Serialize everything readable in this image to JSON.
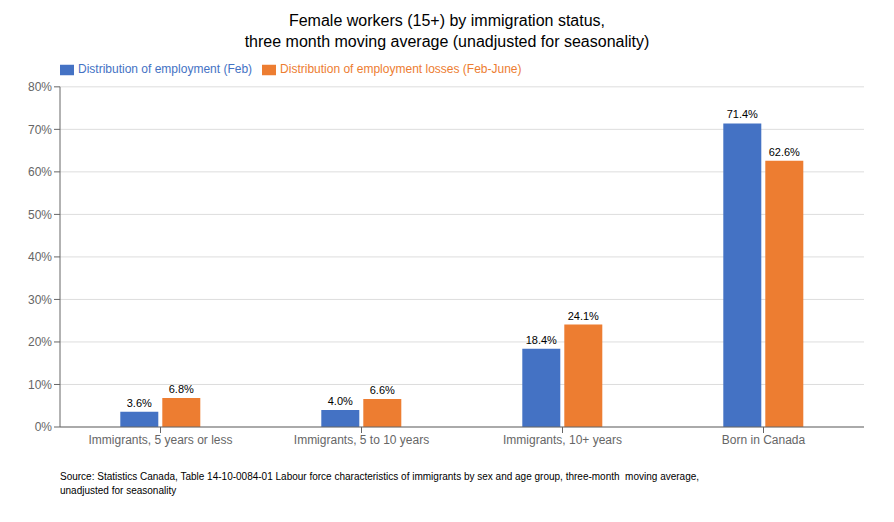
{
  "chart_data": {
    "type": "bar",
    "title": "Female workers (15+) by immigration status,\nthree month moving average (unadjusted for seasonality)",
    "categories": [
      "Immigrants, 5 years or less",
      "Immigrants, 5 to 10 years",
      "Immigrants, 10+ years",
      "Born in Canada"
    ],
    "series": [
      {
        "name": "Distribution of employment (Feb)",
        "color": "#4472C4",
        "values": [
          3.6,
          4.0,
          18.4,
          71.4
        ],
        "value_labels": [
          "3.6%",
          "4.0%",
          "18.4%",
          "71.4%"
        ]
      },
      {
        "name": "Distribution of employment losses (Feb-June)",
        "color": "#ED7D31",
        "values": [
          6.8,
          6.6,
          24.1,
          62.6
        ],
        "value_labels": [
          "6.8%",
          "6.6%",
          "24.1%",
          "62.6%"
        ]
      }
    ],
    "ylim": [
      0,
      80
    ],
    "yticks": [
      {
        "value": 0,
        "label": "0%"
      },
      {
        "value": 10,
        "label": "10%"
      },
      {
        "value": 20,
        "label": "20%"
      },
      {
        "value": 30,
        "label": "30%"
      },
      {
        "value": 40,
        "label": "40%"
      },
      {
        "value": 50,
        "label": "50%"
      },
      {
        "value": 60,
        "label": "60%"
      },
      {
        "value": 70,
        "label": "70%"
      },
      {
        "value": 80,
        "label": "80%"
      }
    ],
    "grid": true,
    "legend": "upper left",
    "data_labels": true,
    "annotations": [
      "Source: Statistics Canada, Table 14-10-0084-01 Labour force characteristics of immigrants by sex and age group, three-month  moving average,\nunadjusted for seasonality"
    ]
  }
}
